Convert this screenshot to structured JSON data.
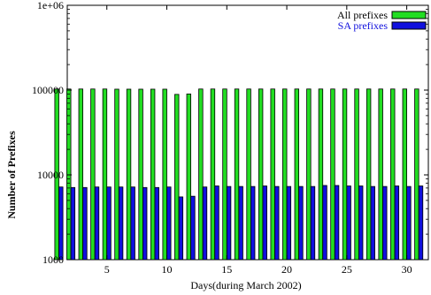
{
  "chart_data": {
    "type": "bar",
    "xlabel": "Days(during March 2002)",
    "ylabel": "Number of Prefixes",
    "y_scale": "log",
    "ylim": [
      1000,
      1000000
    ],
    "xlim": [
      1.7,
      31.8
    ],
    "y_ticks": [
      1000,
      10000,
      100000,
      1000000
    ],
    "y_tick_labels": [
      "1000",
      "10000",
      "100000",
      "1e+06"
    ],
    "x_ticks": [
      5,
      10,
      15,
      20,
      25,
      30
    ],
    "x_tick_labels": [
      "5",
      "10",
      "15",
      "20",
      "25",
      "30"
    ],
    "legend_position": "top-right",
    "categories": [
      1,
      2,
      3,
      4,
      5,
      6,
      7,
      8,
      9,
      10,
      11,
      12,
      13,
      14,
      15,
      16,
      17,
      18,
      19,
      20,
      21,
      22,
      23,
      24,
      25,
      26,
      27,
      28,
      29,
      30,
      31
    ],
    "series": [
      {
        "name": "All prefixes",
        "color": "#22dd22",
        "values": [
          103000,
          103000,
          103000,
          103000,
          103000,
          102500,
          102500,
          102500,
          102500,
          102500,
          89000,
          90000,
          103000,
          103000,
          103000,
          103000,
          103000,
          103000,
          103000,
          103000,
          103000,
          103000,
          103000,
          103000,
          103000,
          103000,
          103000,
          103000,
          103000,
          103000,
          103000
        ]
      },
      {
        "name": "SA prefixes",
        "color": "#1010dd",
        "values": [
          7200,
          7100,
          7100,
          7200,
          7200,
          7200,
          7200,
          7100,
          7100,
          7200,
          5500,
          5600,
          7200,
          7400,
          7300,
          7300,
          7300,
          7400,
          7300,
          7300,
          7300,
          7300,
          7500,
          7500,
          7400,
          7400,
          7300,
          7300,
          7400,
          7300,
          7400
        ]
      }
    ]
  }
}
